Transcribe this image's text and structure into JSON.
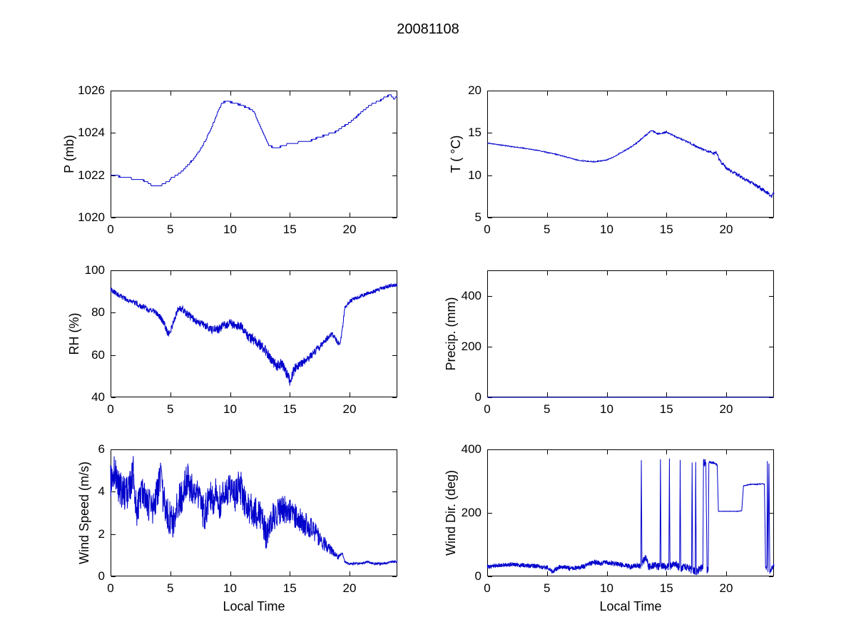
{
  "title": "20081108",
  "figure": {
    "background": "#FFFFFF",
    "axis_color": "#000000",
    "accent_color": "#0000CC"
  },
  "chart_data": [
    {
      "type": "line",
      "name": "pressure",
      "ylabel": "P (mb)",
      "xlabel": "",
      "xlim": [
        0,
        24
      ],
      "ylim": [
        1020,
        1026
      ],
      "xticks": [
        0,
        5,
        10,
        15,
        20
      ],
      "yticks": [
        1020,
        1022,
        1024,
        1026
      ],
      "step": 0.04,
      "quantize": 0.1,
      "noise": 0.025,
      "points": [
        [
          0,
          1022
        ],
        [
          0.5,
          1022
        ],
        [
          1,
          1021.9
        ],
        [
          1.5,
          1021.9
        ],
        [
          2,
          1021.8
        ],
        [
          2.5,
          1021.8
        ],
        [
          3,
          1021.7
        ],
        [
          3.5,
          1021.5
        ],
        [
          4,
          1021.5
        ],
        [
          4.5,
          1021.6
        ],
        [
          5,
          1021.8
        ],
        [
          5.5,
          1022
        ],
        [
          6,
          1022.2
        ],
        [
          6.5,
          1022.5
        ],
        [
          7,
          1022.8
        ],
        [
          7.5,
          1023.2
        ],
        [
          8,
          1023.7
        ],
        [
          8.5,
          1024.3
        ],
        [
          9,
          1025
        ],
        [
          9.3,
          1025.4
        ],
        [
          9.7,
          1025.5
        ],
        [
          10.5,
          1025.4
        ],
        [
          11,
          1025.3
        ],
        [
          11.5,
          1025.2
        ],
        [
          12,
          1025
        ],
        [
          12.3,
          1024.6
        ],
        [
          12.7,
          1024.1
        ],
        [
          13,
          1023.7
        ],
        [
          13.3,
          1023.4
        ],
        [
          13.7,
          1023.3
        ],
        [
          14,
          1023.3
        ],
        [
          14.5,
          1023.4
        ],
        [
          15,
          1023.5
        ],
        [
          15.5,
          1023.5
        ],
        [
          16,
          1023.6
        ],
        [
          16.5,
          1023.6
        ],
        [
          17,
          1023.7
        ],
        [
          17.5,
          1023.8
        ],
        [
          18,
          1023.9
        ],
        [
          18.5,
          1024
        ],
        [
          19,
          1024.1
        ],
        [
          19.5,
          1024.3
        ],
        [
          20,
          1024.5
        ],
        [
          20.5,
          1024.7
        ],
        [
          21,
          1025
        ],
        [
          21.5,
          1025.2
        ],
        [
          22,
          1025.4
        ],
        [
          22.5,
          1025.5
        ],
        [
          23,
          1025.7
        ],
        [
          23.4,
          1025.8
        ],
        [
          23.7,
          1025.6
        ],
        [
          24,
          1025.7
        ]
      ]
    },
    {
      "type": "line",
      "name": "temperature",
      "ylabel": "T ( °C)",
      "xlabel": "",
      "xlim": [
        0,
        24
      ],
      "ylim": [
        5,
        20
      ],
      "xticks": [
        0,
        5,
        10,
        15,
        20
      ],
      "yticks": [
        5,
        10,
        15,
        20
      ],
      "step": 0.03,
      "quantize": 0,
      "noise": [
        [
          0,
          0.05
        ],
        [
          10,
          0.06
        ],
        [
          16,
          0.1
        ],
        [
          19,
          0.15
        ],
        [
          20,
          0.2
        ],
        [
          24,
          0.25
        ]
      ],
      "points": [
        [
          0,
          13.8
        ],
        [
          1,
          13.6
        ],
        [
          2,
          13.4
        ],
        [
          3,
          13.2
        ],
        [
          4,
          13
        ],
        [
          5,
          12.7
        ],
        [
          6,
          12.4
        ],
        [
          7,
          12
        ],
        [
          7.5,
          11.8
        ],
        [
          8,
          11.7
        ],
        [
          9,
          11.6
        ],
        [
          9.5,
          11.7
        ],
        [
          10,
          11.8
        ],
        [
          10.5,
          12.1
        ],
        [
          11,
          12.5
        ],
        [
          11.5,
          12.9
        ],
        [
          12,
          13.3
        ],
        [
          12.5,
          13.8
        ],
        [
          13,
          14.4
        ],
        [
          13.5,
          15
        ],
        [
          13.8,
          15.3
        ],
        [
          14,
          15.1
        ],
        [
          14.3,
          14.9
        ],
        [
          14.7,
          15
        ],
        [
          15,
          15.1
        ],
        [
          15.3,
          14.9
        ],
        [
          15.7,
          14.6
        ],
        [
          16,
          14.4
        ],
        [
          16.5,
          14.1
        ],
        [
          17,
          13.8
        ],
        [
          17.5,
          13.4
        ],
        [
          18,
          13.1
        ],
        [
          18.5,
          12.8
        ],
        [
          19,
          12.6
        ],
        [
          19.2,
          12.7
        ],
        [
          19.4,
          11.9
        ],
        [
          19.6,
          11.5
        ],
        [
          19.8,
          11.2
        ],
        [
          20,
          10.9
        ],
        [
          20.5,
          10.4
        ],
        [
          21,
          10
        ],
        [
          21.5,
          9.6
        ],
        [
          22,
          9.2
        ],
        [
          22.5,
          8.8
        ],
        [
          23,
          8.3
        ],
        [
          23.5,
          7.9
        ],
        [
          23.8,
          7.6
        ],
        [
          24,
          7.8
        ]
      ]
    },
    {
      "type": "line",
      "name": "relative-humidity",
      "ylabel": "RH (%)",
      "xlabel": "",
      "xlim": [
        0,
        24
      ],
      "ylim": [
        40,
        100
      ],
      "xticks": [
        0,
        5,
        10,
        15,
        20
      ],
      "yticks": [
        40,
        60,
        80,
        100
      ],
      "step": 0.02,
      "quantize": 0,
      "noise": [
        [
          0,
          1.2
        ],
        [
          4,
          1.5
        ],
        [
          8,
          2
        ],
        [
          12,
          2.5
        ],
        [
          15,
          2.5
        ],
        [
          18,
          1.5
        ],
        [
          19.5,
          1
        ],
        [
          24,
          0.8
        ]
      ],
      "points": [
        [
          0,
          91
        ],
        [
          0.5,
          89
        ],
        [
          1,
          87
        ],
        [
          1.5,
          86
        ],
        [
          2,
          85
        ],
        [
          2.5,
          83
        ],
        [
          3,
          82
        ],
        [
          3.5,
          81
        ],
        [
          4,
          79
        ],
        [
          4.5,
          75
        ],
        [
          4.8,
          70
        ],
        [
          5,
          71
        ],
        [
          5.3,
          76
        ],
        [
          5.6,
          81
        ],
        [
          6,
          82
        ],
        [
          6.3,
          80
        ],
        [
          6.7,
          78
        ],
        [
          7,
          77
        ],
        [
          7.5,
          75
        ],
        [
          8,
          74
        ],
        [
          8.5,
          72
        ],
        [
          9,
          72
        ],
        [
          9.5,
          74
        ],
        [
          10,
          75
        ],
        [
          10.5,
          74
        ],
        [
          11,
          73
        ],
        [
          11.3,
          70
        ],
        [
          11.7,
          68
        ],
        [
          12,
          67
        ],
        [
          12.5,
          65
        ],
        [
          13,
          62
        ],
        [
          13.5,
          57
        ],
        [
          14,
          55
        ],
        [
          14.3,
          56
        ],
        [
          14.6,
          53
        ],
        [
          15,
          48
        ],
        [
          15.3,
          52
        ],
        [
          15.6,
          55
        ],
        [
          16,
          56
        ],
        [
          16.5,
          58
        ],
        [
          17,
          61
        ],
        [
          17.5,
          64
        ],
        [
          18,
          67
        ],
        [
          18.5,
          70
        ],
        [
          18.8,
          68
        ],
        [
          19,
          66
        ],
        [
          19.2,
          65
        ],
        [
          19.4,
          72
        ],
        [
          19.6,
          82
        ],
        [
          20,
          85
        ],
        [
          20.5,
          87
        ],
        [
          21,
          88
        ],
        [
          21.5,
          89
        ],
        [
          22,
          90
        ],
        [
          22.5,
          91
        ],
        [
          23,
          92
        ],
        [
          23.5,
          93
        ],
        [
          24,
          93
        ]
      ]
    },
    {
      "type": "line",
      "name": "precipitation",
      "ylabel": "Precip. (mm)",
      "xlabel": "",
      "xlim": [
        0,
        24
      ],
      "ylim": [
        0,
        500
      ],
      "xticks": [
        0,
        5,
        10,
        15,
        20
      ],
      "yticks": [
        0,
        200,
        400
      ],
      "step": 1,
      "quantize": 0,
      "noise": 0,
      "points": [
        [
          0,
          0
        ],
        [
          24,
          0
        ]
      ]
    },
    {
      "type": "line",
      "name": "wind-speed",
      "ylabel": "Wind Speed (m/s)",
      "xlabel": "Local Time",
      "xlim": [
        0,
        24
      ],
      "ylim": [
        0,
        6
      ],
      "xticks": [
        0,
        5,
        10,
        15,
        20
      ],
      "yticks": [
        0,
        2,
        4,
        6
      ],
      "step": 0.02,
      "quantize": 0,
      "noise": [
        [
          0,
          0.85
        ],
        [
          11,
          0.85
        ],
        [
          13,
          0.75
        ],
        [
          15,
          0.65
        ],
        [
          16,
          0.6
        ],
        [
          17,
          0.5
        ],
        [
          18,
          0.35
        ],
        [
          18.8,
          0.15
        ],
        [
          19.3,
          0.05
        ],
        [
          24,
          0.05
        ]
      ],
      "points": [
        [
          0,
          4.5
        ],
        [
          0.3,
          5
        ],
        [
          0.8,
          4.1
        ],
        [
          1.4,
          3.9
        ],
        [
          1.9,
          4.9
        ],
        [
          2.2,
          2.9
        ],
        [
          2.6,
          3.9
        ],
        [
          3,
          3.5
        ],
        [
          3.5,
          3.2
        ],
        [
          4.2,
          4.6
        ],
        [
          4.6,
          3
        ],
        [
          5.2,
          2.6
        ],
        [
          5.6,
          3.4
        ],
        [
          6,
          3.8
        ],
        [
          6.4,
          4.6
        ],
        [
          7,
          3.9
        ],
        [
          7.5,
          3.7
        ],
        [
          7.8,
          2.9
        ],
        [
          8.2,
          3.6
        ],
        [
          8.8,
          3.8
        ],
        [
          9.2,
          3.4
        ],
        [
          9.6,
          3.9
        ],
        [
          10,
          4
        ],
        [
          10.4,
          3.7
        ],
        [
          10.8,
          4.4
        ],
        [
          11.2,
          3.5
        ],
        [
          11.6,
          3.3
        ],
        [
          12,
          3.1
        ],
        [
          12.5,
          2.8
        ],
        [
          13.1,
          1.9
        ],
        [
          13.5,
          2.8
        ],
        [
          14,
          3
        ],
        [
          14.5,
          3.2
        ],
        [
          15,
          3
        ],
        [
          15.5,
          2.8
        ],
        [
          16,
          2.6
        ],
        [
          16.5,
          2.4
        ],
        [
          17,
          2.2
        ],
        [
          17.5,
          1.8
        ],
        [
          18,
          1.5
        ],
        [
          18.5,
          1.2
        ],
        [
          19,
          0.9
        ],
        [
          19.4,
          1.1
        ],
        [
          19.6,
          0.7
        ],
        [
          20,
          0.6
        ],
        [
          21,
          0.6
        ],
        [
          21.5,
          0.7
        ],
        [
          22,
          0.6
        ],
        [
          23,
          0.6
        ],
        [
          23.5,
          0.7
        ],
        [
          24,
          0.7
        ]
      ]
    },
    {
      "type": "line",
      "name": "wind-direction",
      "ylabel": "Wind Dir. (deg)",
      "xlabel": "Local Time",
      "xlim": [
        0,
        24
      ],
      "ylim": [
        0,
        400
      ],
      "xticks": [
        0,
        5,
        10,
        15,
        20
      ],
      "yticks": [
        0,
        200,
        400
      ],
      "step": 0.015,
      "quantize": 0,
      "noise": [
        [
          0,
          6
        ],
        [
          5,
          7
        ],
        [
          9,
          8
        ],
        [
          12.5,
          8
        ],
        [
          13,
          12
        ],
        [
          14,
          12
        ],
        [
          18.4,
          12
        ],
        [
          18.6,
          3
        ],
        [
          19.2,
          3
        ],
        [
          19.3,
          0.5
        ],
        [
          21.4,
          0.5
        ],
        [
          21.5,
          1
        ],
        [
          23.2,
          1
        ],
        [
          23.3,
          8
        ],
        [
          24,
          8
        ]
      ],
      "points": [
        [
          0,
          30
        ],
        [
          1,
          35
        ],
        [
          2,
          38
        ],
        [
          3,
          35
        ],
        [
          4,
          32
        ],
        [
          5,
          28
        ],
        [
          5.5,
          14
        ],
        [
          6,
          30
        ],
        [
          7,
          25
        ],
        [
          8,
          30
        ],
        [
          8.5,
          38
        ],
        [
          9,
          45
        ],
        [
          9.5,
          42
        ],
        [
          10,
          45
        ],
        [
          10.5,
          40
        ],
        [
          11,
          38
        ],
        [
          11.5,
          35
        ],
        [
          12,
          30
        ],
        [
          12.5,
          35
        ],
        [
          12.85,
          30
        ],
        [
          12.9,
          360
        ],
        [
          12.95,
          40
        ],
        [
          13.3,
          60
        ],
        [
          13.5,
          30
        ],
        [
          14,
          35
        ],
        [
          14.45,
          30
        ],
        [
          14.5,
          360
        ],
        [
          14.55,
          35
        ],
        [
          15,
          30
        ],
        [
          15.2,
          30
        ],
        [
          15.25,
          360
        ],
        [
          15.3,
          30
        ],
        [
          15.8,
          40
        ],
        [
          16.1,
          25
        ],
        [
          16.15,
          360
        ],
        [
          16.2,
          25
        ],
        [
          16.6,
          30
        ],
        [
          17,
          25
        ],
        [
          17.1,
          20
        ],
        [
          17.15,
          360
        ],
        [
          17.2,
          20
        ],
        [
          17.4,
          15
        ],
        [
          17.45,
          360
        ],
        [
          17.5,
          15
        ],
        [
          17.8,
          25
        ],
        [
          18.05,
          30
        ],
        [
          18.1,
          360
        ],
        [
          18.3,
          355
        ],
        [
          18.4,
          20
        ],
        [
          18.5,
          20
        ],
        [
          18.55,
          360
        ],
        [
          18.9,
          358
        ],
        [
          19.1,
          355
        ],
        [
          19.25,
          350
        ],
        [
          19.35,
          205
        ],
        [
          20,
          205
        ],
        [
          21,
          205
        ],
        [
          21.3,
          207
        ],
        [
          21.45,
          285
        ],
        [
          22,
          290
        ],
        [
          22.6,
          290
        ],
        [
          23,
          292
        ],
        [
          23.2,
          290
        ],
        [
          23.3,
          30
        ],
        [
          23.4,
          25
        ],
        [
          23.45,
          360
        ],
        [
          23.5,
          20
        ],
        [
          23.58,
          355
        ],
        [
          23.65,
          15
        ],
        [
          23.8,
          25
        ],
        [
          24,
          35
        ]
      ]
    }
  ]
}
